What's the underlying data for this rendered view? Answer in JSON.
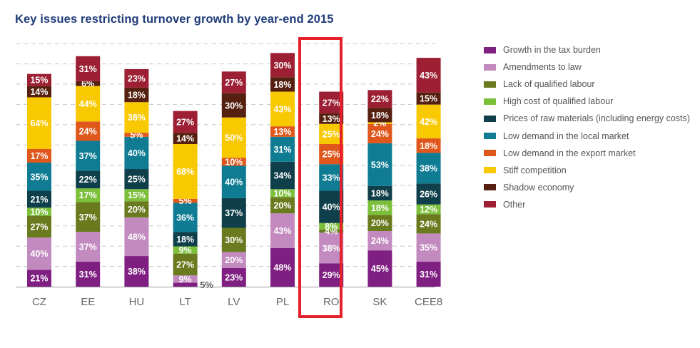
{
  "chart_data": {
    "type": "bar",
    "stacked": true,
    "title": "Key issues restricting turnover growth by year-end 2015",
    "xlabel": "",
    "ylabel": "",
    "categories": [
      "CZ",
      "EE",
      "HU",
      "LT",
      "LV",
      "PL",
      "RO",
      "SK",
      "CEE8"
    ],
    "highlighted_category": "RO",
    "grid": true,
    "legend_position": "right",
    "series": [
      {
        "name": "Growth in the tax burden",
        "color": "#7f1f82",
        "values": [
          21,
          31,
          38,
          5,
          23,
          48,
          29,
          45,
          31
        ]
      },
      {
        "name": "Amendments to law",
        "color": "#c38ac0",
        "values": [
          40,
          37,
          48,
          9,
          20,
          43,
          38,
          24,
          35
        ]
      },
      {
        "name": "Lack of qualified labour",
        "color": "#6a7a1e",
        "values": [
          27,
          37,
          20,
          27,
          30,
          20,
          4,
          20,
          24
        ]
      },
      {
        "name": "High cost of qualified labour",
        "color": "#7cbf3a",
        "values": [
          10,
          17,
          15,
          9,
          0,
          10,
          8,
          18,
          12
        ]
      },
      {
        "name": "Prices of raw materials (including energy costs)",
        "color": "#0e3f4a",
        "values": [
          21,
          22,
          25,
          18,
          37,
          34,
          40,
          18,
          26
        ]
      },
      {
        "name": "Low demand in the local market",
        "color": "#0f7c93",
        "values": [
          35,
          37,
          40,
          36,
          40,
          31,
          33,
          53,
          38
        ]
      },
      {
        "name": "Low demand in the export market",
        "color": "#e0571b",
        "values": [
          17,
          24,
          5,
          5,
          10,
          13,
          25,
          24,
          18
        ]
      },
      {
        "name": "Stiff competition",
        "color": "#f8c800",
        "values": [
          64,
          44,
          38,
          68,
          50,
          43,
          25,
          2,
          42
        ]
      },
      {
        "name": "Shadow economy",
        "color": "#55200f",
        "values": [
          14,
          6,
          18,
          14,
          30,
          18,
          13,
          18,
          15
        ]
      },
      {
        "name": "Other",
        "color": "#9c1f33",
        "values": [
          15,
          31,
          23,
          27,
          27,
          30,
          27,
          22,
          43
        ]
      }
    ],
    "outside_labels": [
      {
        "category": "LT",
        "series": "Growth in the tax burden",
        "text": "5%"
      }
    ]
  }
}
